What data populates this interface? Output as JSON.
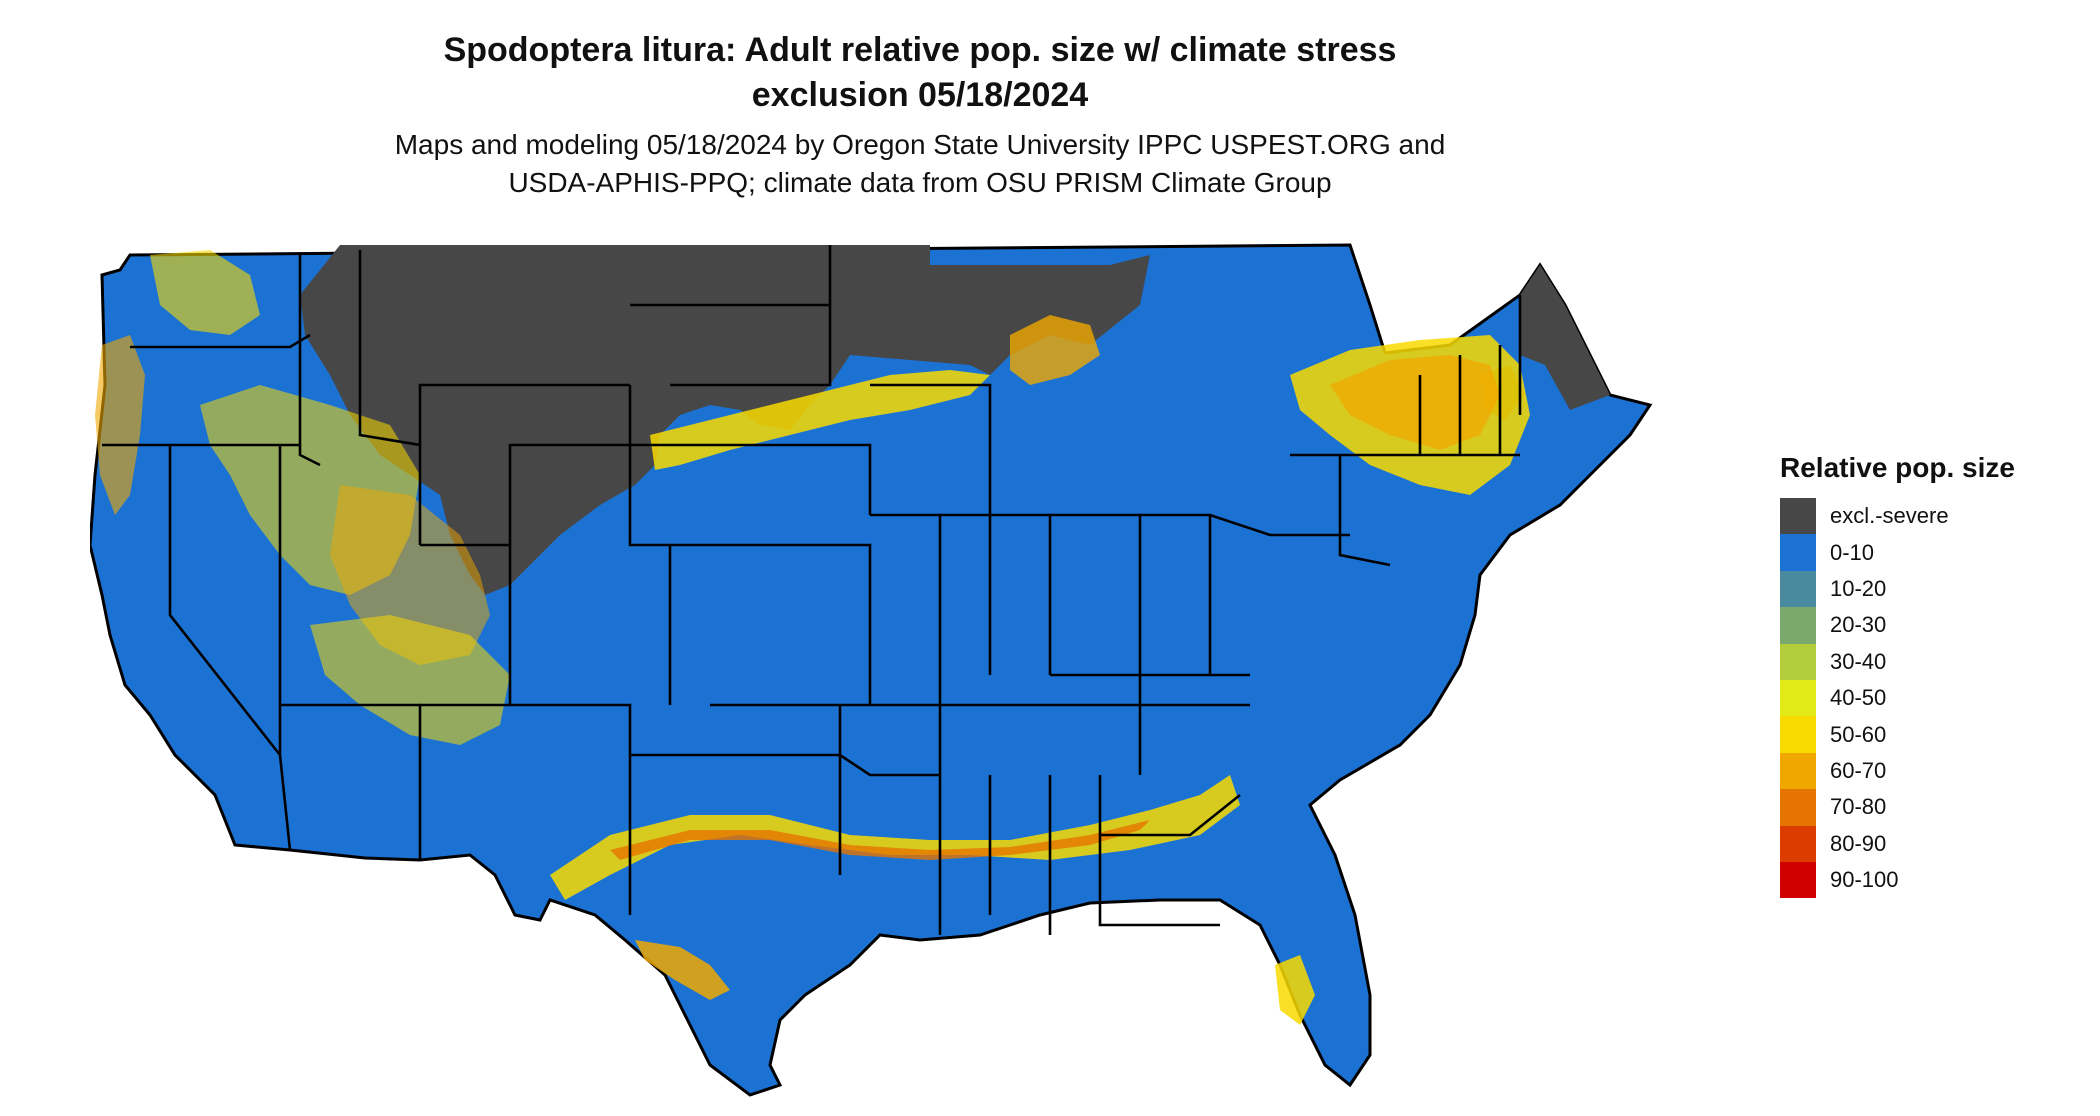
{
  "map": {
    "title_line1": "Spodoptera litura: Adult relative pop. size w/ climate stress",
    "title_line2": "exclusion 05/18/2024",
    "subtitle_line1": "Maps and modeling 05/18/2024 by Oregon State University IPPC USPEST.ORG and",
    "subtitle_line2": "USDA-APHIS-PPQ; climate data from OSU PRISM Climate Group"
  },
  "legend": {
    "title": "Relative pop. size",
    "items": [
      {
        "label": "excl.-severe",
        "color": "#474747"
      },
      {
        "label": "0-10",
        "color": "#1c72d3"
      },
      {
        "label": "10-20",
        "color": "#4a8a9e"
      },
      {
        "label": "20-30",
        "color": "#7aa96b"
      },
      {
        "label": "30-40",
        "color": "#b3cd3b"
      },
      {
        "label": "40-50",
        "color": "#e1ea16"
      },
      {
        "label": "50-60",
        "color": "#f8db00"
      },
      {
        "label": "60-70",
        "color": "#f0a800"
      },
      {
        "label": "70-80",
        "color": "#e67400"
      },
      {
        "label": "80-90",
        "color": "#dc3c00"
      },
      {
        "label": "90-100",
        "color": "#d00000"
      }
    ]
  }
}
